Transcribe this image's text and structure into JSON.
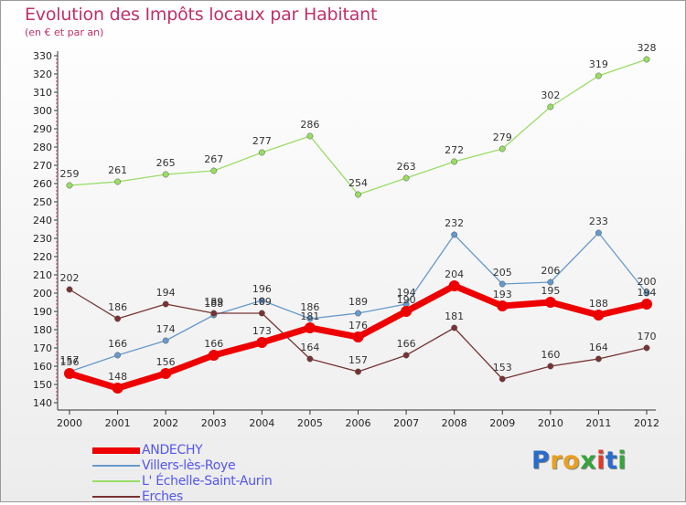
{
  "title": "Evolution des Impôts locaux par Habitant",
  "subtitle": "(en € et par an)",
  "logo": {
    "letters": [
      "P",
      "r",
      "o",
      "x",
      "i",
      "t",
      "i"
    ],
    "colors": [
      "#2a6cc9",
      "#e8a020",
      "#e8a020",
      "#36a43c",
      "#e23a2a",
      "#2a6cc9",
      "#36a43c"
    ]
  },
  "chart_data": {
    "type": "line",
    "title": "Evolution des Impôts locaux par Habitant",
    "ylabel": "(en € et par an)",
    "xlabel": "",
    "x": [
      "2000",
      "2001",
      "2002",
      "2003",
      "2004",
      "2005",
      "2006",
      "2007",
      "2008",
      "2009",
      "2010",
      "2011",
      "2012"
    ],
    "ylim": [
      140,
      330
    ],
    "yticks": [
      140,
      150,
      160,
      170,
      180,
      190,
      200,
      210,
      220,
      230,
      240,
      250,
      260,
      270,
      280,
      290,
      300,
      310,
      320,
      330
    ],
    "grid": false,
    "legend_position": "bottom-left",
    "series": [
      {
        "name": "ANDECHY",
        "color": "#ee0000",
        "width": 7,
        "values": [
          156,
          148,
          156,
          166,
          173,
          181,
          176,
          190,
          204,
          193,
          195,
          188,
          194
        ]
      },
      {
        "name": "Villers-lès-Roye",
        "color": "#6699cc",
        "width": 1.3,
        "values": [
          157,
          166,
          174,
          188,
          196,
          186,
          189,
          194,
          232,
          205,
          206,
          233,
          200
        ]
      },
      {
        "name": "L' Échelle-Saint-Aurin",
        "color": "#99dd66",
        "width": 1.3,
        "values": [
          259,
          261,
          265,
          267,
          277,
          286,
          254,
          263,
          272,
          279,
          302,
          319,
          328
        ]
      },
      {
        "name": "Erches",
        "color": "#773333",
        "width": 1.3,
        "values": [
          202,
          186,
          194,
          189,
          189,
          164,
          157,
          166,
          181,
          153,
          160,
          164,
          170
        ]
      }
    ]
  }
}
